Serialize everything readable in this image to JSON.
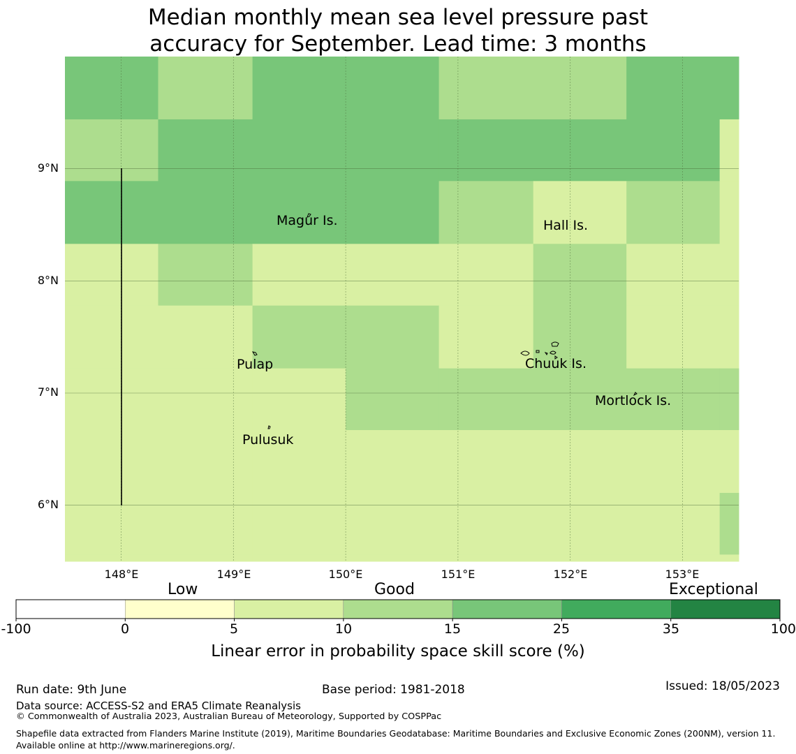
{
  "title": {
    "line1": "Median monthly mean sea level pressure past",
    "line2": "accuracy for September. Lead time: 3 months"
  },
  "map": {
    "lat_ticks": [
      "9°N",
      "8°N",
      "7°N",
      "6°N"
    ],
    "lon_ticks": [
      "148°E",
      "149°E",
      "150°E",
      "151°E",
      "152°E",
      "153°E"
    ],
    "extent": {
      "lon_min": 147.5,
      "lon_max": 153.5,
      "lat_min": 5.5,
      "lat_max": 10.0
    },
    "grid_lon_edges": [
      147.5,
      148.33,
      149.17,
      150.0,
      150.83,
      151.67,
      152.5,
      153.33,
      153.5
    ],
    "grid_lat_edges": [
      10.0,
      9.44,
      8.89,
      8.33,
      7.78,
      7.22,
      6.67,
      6.11,
      5.56,
      5.5
    ],
    "skill_category_grid": [
      [
        4,
        3,
        4,
        4,
        3,
        3,
        4,
        4
      ],
      [
        3,
        4,
        4,
        4,
        4,
        4,
        4,
        2
      ],
      [
        4,
        4,
        4,
        4,
        3,
        2,
        3,
        2
      ],
      [
        2,
        3,
        2,
        2,
        2,
        3,
        2,
        2
      ],
      [
        2,
        2,
        3,
        3,
        2,
        3,
        2,
        2
      ],
      [
        2,
        2,
        2,
        3,
        3,
        3,
        3,
        3
      ],
      [
        2,
        2,
        2,
        2,
        2,
        2,
        2,
        2
      ],
      [
        2,
        2,
        2,
        2,
        2,
        2,
        2,
        3
      ],
      [
        2,
        2,
        2,
        2,
        2,
        2,
        2,
        2
      ]
    ],
    "places": [
      {
        "name": "Magur Is.",
        "lon": 149.65,
        "lat": 8.6
      },
      {
        "name": "Hall Is.",
        "lon": 151.95,
        "lat": 8.55
      },
      {
        "name": "Pulap",
        "lon": 149.2,
        "lat": 7.35
      },
      {
        "name": "Chuuk Is.",
        "lon": 151.85,
        "lat": 7.35
      },
      {
        "name": "Mortlock Is.",
        "lon": 152.6,
        "lat": 6.95
      },
      {
        "name": "Pulusuk",
        "lon": 149.3,
        "lat": 6.65
      }
    ]
  },
  "colorbar": {
    "boundaries": [
      "-100",
      "0",
      "5",
      "10",
      "15",
      "25",
      "35",
      "100"
    ],
    "colors": [
      "#ffffff",
      "#ffffcc",
      "#d9f0a3",
      "#addd8e",
      "#78c679",
      "#41ab5d",
      "#238443"
    ],
    "category_labels": [
      "Low",
      "Good",
      "Exceptional"
    ],
    "axis_title": "Linear error in probability space skill score (%)"
  },
  "footer": {
    "run_date": "Run date: 9th June",
    "base_period": "Base period: 1981-2018",
    "issued": "Issued: 18/05/2023",
    "data_source": "Data source: ACCESS-S2 and ERA5 Climate Reanalysis",
    "copyright": "© Commonwealth of Australia 2023, Australian Bureau of Meteorology, Supported by COSPPac",
    "shapefile": "Shapefile data extracted from Flanders Marine Institute (2019), Maritime Boundaries Geodatabase: Maritime Boundaries and Exclusive Economic Zones (200NM), version 11. Available online at http://www.marineregions.org/."
  }
}
